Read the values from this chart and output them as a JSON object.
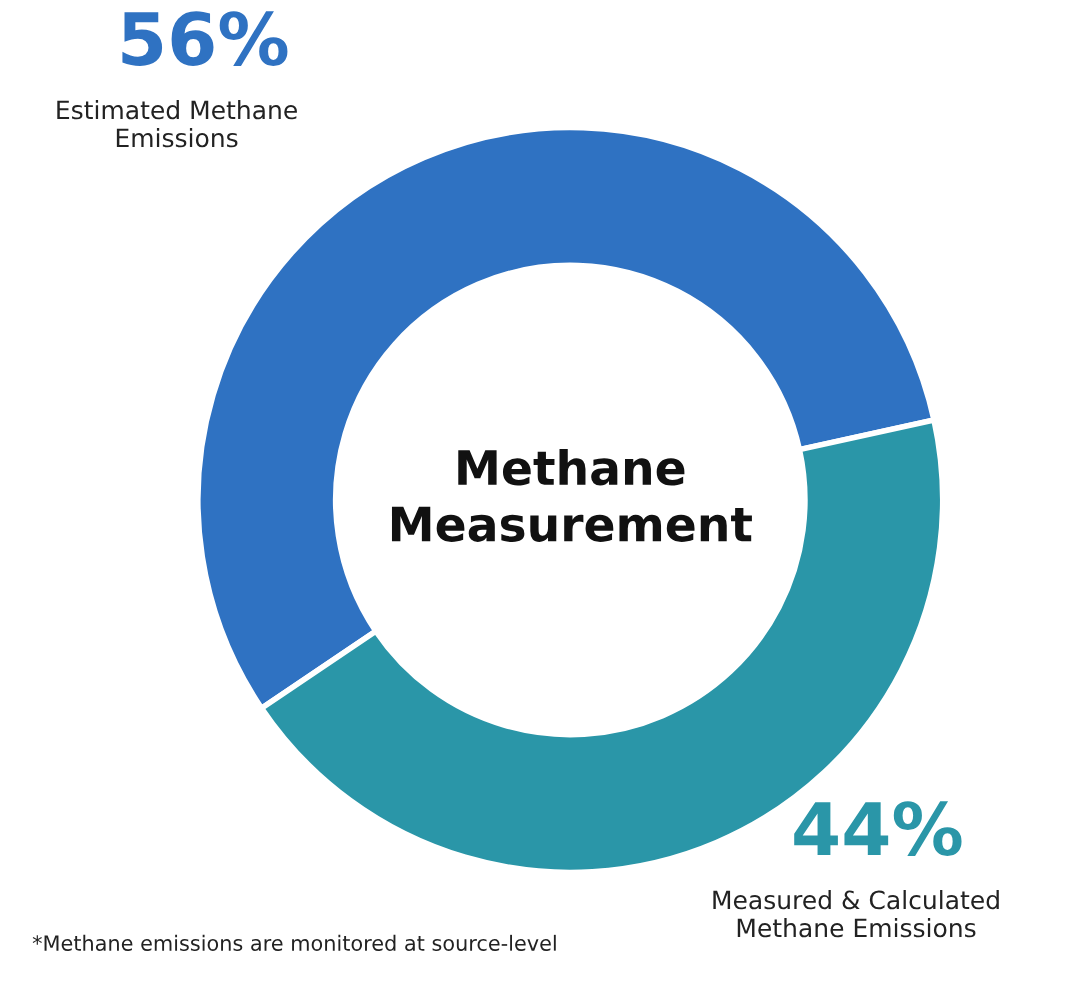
{
  "chart_data": {
    "type": "donut",
    "title": "Methane\nMeasurement",
    "categories": [
      "Estimated Methane\nEmissions",
      "Measured & Calculated\nMethane Emissions"
    ],
    "values": [
      56,
      44
    ],
    "value_labels": [
      "56%",
      "44%"
    ],
    "colors": [
      "#2f72c2",
      "#2a96a8"
    ],
    "legend": false,
    "annotations": [
      "*Methane emissions are monitored at source-level"
    ]
  }
}
